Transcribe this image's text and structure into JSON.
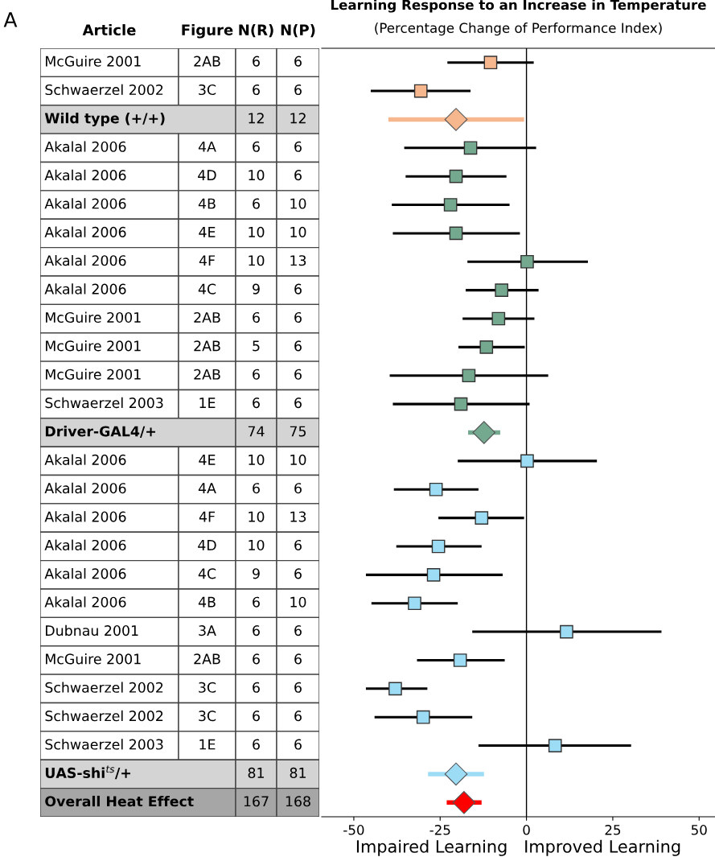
{
  "chart_data": [
    {
      "type": "other",
      "annotations": [
        "A"
      ],
      "categories": [
        "Article",
        "Figure",
        "N(R)",
        "N(P)"
      ],
      "cell_labels": [
        [
          "McGuire 2001",
          "2AB",
          "6",
          "6"
        ],
        [
          "Schwaerzel 2002",
          "3C",
          "6",
          "6"
        ],
        [
          "Wild type (+/+)",
          null,
          "12",
          "12"
        ],
        [
          "Akalal 2006",
          "4A",
          "6",
          "6"
        ],
        [
          "Akalal 2006",
          "4D",
          "10",
          "6"
        ],
        [
          "Akalal 2006",
          "4B",
          "6",
          "10"
        ],
        [
          "Akalal 2006",
          "4E",
          "10",
          "10"
        ],
        [
          "Akalal 2006",
          "4F",
          "10",
          "13"
        ],
        [
          "Akalal 2006",
          "4C",
          "9",
          "6"
        ],
        [
          "McGuire 2001",
          "2AB",
          "6",
          "6"
        ],
        [
          "McGuire 2001",
          "2AB",
          "5",
          "6"
        ],
        [
          "McGuire 2001",
          "2AB",
          "6",
          "6"
        ],
        [
          "Schwaerzel 2003",
          "1E",
          "6",
          "6"
        ],
        [
          "Driver-GAL4/+",
          null,
          "74",
          "75"
        ],
        [
          "Akalal 2006",
          "4E",
          "10",
          "10"
        ],
        [
          "Akalal 2006",
          "4A",
          "6",
          "6"
        ],
        [
          "Akalal 2006",
          "4F",
          "10",
          "13"
        ],
        [
          "Akalal 2006",
          "4D",
          "10",
          "6"
        ],
        [
          "Akalal 2006",
          "4C",
          "9",
          "6"
        ],
        [
          "Akalal 2006",
          "4B",
          "6",
          "10"
        ],
        [
          "Dubnau 2001",
          "3A",
          "6",
          "6"
        ],
        [
          "McGuire 2001",
          "2AB",
          "6",
          "6"
        ],
        [
          "Schwaerzel 2002",
          "3C",
          "6",
          "6"
        ],
        [
          "Schwaerzel 2002",
          "3C",
          "6",
          "6"
        ],
        [
          "Schwaerzel 2003",
          "1E",
          "6",
          "6"
        ],
        [
          "UAS-shi$^{ts}$/+",
          null,
          "81",
          "81"
        ],
        [
          "Overall Heat Effect",
          null,
          "167",
          "168"
        ]
      ],
      "colors": [
        "#ffffff",
        "#ffffff",
        "#d4d4d4",
        "#ffffff",
        "#ffffff",
        "#ffffff",
        "#ffffff",
        "#ffffff",
        "#ffffff",
        "#ffffff",
        "#ffffff",
        "#ffffff",
        "#ffffff",
        "#d4d4d4",
        "#ffffff",
        "#ffffff",
        "#ffffff",
        "#ffffff",
        "#ffffff",
        "#ffffff",
        "#ffffff",
        "#ffffff",
        "#ffffff",
        "#ffffff",
        "#ffffff",
        "#d4d4d4",
        "#a6a6a6"
      ]
    },
    {
      "type": "scatter",
      "orientation": "horizontal",
      "title": "Learning Response to an Increase in Temperature",
      "subtitle": "(Percentage Change of Performance Index)",
      "xlabel": "Impaired Learning   Improved Learning",
      "categories": [
        null,
        null,
        null,
        null,
        null,
        null,
        null,
        null,
        null,
        null,
        null,
        null,
        null,
        null,
        null,
        null,
        null,
        null,
        null,
        null,
        null,
        null,
        null,
        null,
        null,
        null,
        null
      ],
      "xlim": [
        -59.3,
        54.6
      ],
      "xticks": [
        -50,
        -25,
        0,
        25,
        50
      ],
      "grid": false,
      "ref_lines": [
        {
          "axis": "x",
          "value": 0,
          "color": "#000000"
        }
      ],
      "series": [
        {
          "color": "#f6b68e",
          "marker": "square",
          "values": [
            -10.4,
            -30.6,
            null,
            null,
            null,
            null,
            null,
            null,
            null,
            null,
            null,
            null,
            null,
            null,
            null,
            null,
            null,
            null,
            null,
            null,
            null,
            null,
            null,
            null,
            null,
            null,
            null
          ],
          "errors": [
            [
              -22.9,
              2.1
            ],
            [
              -45.1,
              -16.2
            ],
            null,
            null,
            null,
            null,
            null,
            null,
            null,
            null,
            null,
            null,
            null,
            null,
            null,
            null,
            null,
            null,
            null,
            null,
            null,
            null,
            null,
            null,
            null,
            null,
            null
          ]
        },
        {
          "color": "#f6b68e",
          "marker": "diamond",
          "values": [
            null,
            null,
            -20.4,
            null,
            null,
            null,
            null,
            null,
            null,
            null,
            null,
            null,
            null,
            null,
            null,
            null,
            null,
            null,
            null,
            null,
            null,
            null,
            null,
            null,
            null,
            null,
            null
          ],
          "errors": [
            null,
            null,
            [
              -40,
              -0.7
            ],
            null,
            null,
            null,
            null,
            null,
            null,
            null,
            null,
            null,
            null,
            null,
            null,
            null,
            null,
            null,
            null,
            null,
            null,
            null,
            null,
            null,
            null,
            null,
            null
          ]
        },
        {
          "color": "#74a98f",
          "marker": "square",
          "values": [
            null,
            null,
            null,
            -16.2,
            -20.4,
            -22,
            -20.4,
            0.2,
            -7.2,
            -8.1,
            -11.6,
            -16.7,
            -19,
            null,
            null,
            null,
            null,
            null,
            null,
            null,
            null,
            null,
            null,
            null,
            null,
            null,
            null
          ],
          "errors": [
            null,
            null,
            null,
            [
              -35.4,
              2.8
            ],
            [
              -35,
              -5.8
            ],
            [
              -39,
              -4.9
            ],
            [
              -38.7,
              -1.9
            ],
            [
              -17.1,
              17.8
            ],
            [
              -17.6,
              3.5
            ],
            [
              -18.5,
              2.3
            ],
            [
              -19.7,
              -0.5
            ],
            [
              -39.6,
              6.3
            ],
            [
              -38.7,
              0.9
            ],
            null,
            null,
            null,
            null,
            null,
            null,
            null,
            null,
            null,
            null,
            null,
            null,
            null,
            null
          ]
        },
        {
          "color": "#74a98f",
          "marker": "diamond",
          "values": [
            null,
            null,
            null,
            null,
            null,
            null,
            null,
            null,
            null,
            null,
            null,
            null,
            null,
            -12.3,
            null,
            null,
            null,
            null,
            null,
            null,
            null,
            null,
            null,
            null,
            null,
            null,
            null
          ],
          "errors": [
            null,
            null,
            null,
            null,
            null,
            null,
            null,
            null,
            null,
            null,
            null,
            null,
            null,
            [
              -16.9,
              -7.6
            ],
            null,
            null,
            null,
            null,
            null,
            null,
            null,
            null,
            null,
            null,
            null,
            null,
            null
          ]
        },
        {
          "color": "#9ddcf5",
          "marker": "square",
          "values": [
            null,
            null,
            null,
            null,
            null,
            null,
            null,
            null,
            null,
            null,
            null,
            null,
            null,
            null,
            0.2,
            -26.2,
            -13,
            -25.5,
            -26.9,
            -32.4,
            11.6,
            -19.2,
            -38,
            -29.9,
            8.3,
            null,
            null
          ],
          "errors": [
            null,
            null,
            null,
            null,
            null,
            null,
            null,
            null,
            null,
            null,
            null,
            null,
            null,
            null,
            [
              -19.9,
              20.4
            ],
            [
              -38.4,
              -13.9
            ],
            [
              -25.5,
              -0.7
            ],
            [
              -37.7,
              -13
            ],
            [
              -46.5,
              -6.9
            ],
            [
              -44.9,
              -19.9
            ],
            [
              -15.7,
              39.1
            ],
            [
              -31.7,
              -6.3
            ],
            [
              -46.5,
              -28.7
            ],
            [
              -44,
              -15.7
            ],
            [
              -13.9,
              30.3
            ],
            null,
            null
          ]
        },
        {
          "color": "#9ddcf5",
          "marker": "diamond",
          "values": [
            null,
            null,
            null,
            null,
            null,
            null,
            null,
            null,
            null,
            null,
            null,
            null,
            null,
            null,
            null,
            null,
            null,
            null,
            null,
            null,
            null,
            null,
            null,
            null,
            null,
            -20.4,
            null
          ],
          "errors": [
            null,
            null,
            null,
            null,
            null,
            null,
            null,
            null,
            null,
            null,
            null,
            null,
            null,
            null,
            null,
            null,
            null,
            null,
            null,
            null,
            null,
            null,
            null,
            null,
            null,
            [
              -28.5,
              -12.3
            ],
            null
          ]
        },
        {
          "color": "#ff0000",
          "marker": "diamond",
          "values": [
            null,
            null,
            null,
            null,
            null,
            null,
            null,
            null,
            null,
            null,
            null,
            null,
            null,
            null,
            null,
            null,
            null,
            null,
            null,
            null,
            null,
            null,
            null,
            null,
            null,
            null,
            -18.1
          ],
          "errors": [
            null,
            null,
            null,
            null,
            null,
            null,
            null,
            null,
            null,
            null,
            null,
            null,
            null,
            null,
            null,
            null,
            null,
            null,
            null,
            null,
            null,
            null,
            null,
            null,
            null,
            null,
            [
              -23.1,
              -13
            ]
          ]
        }
      ]
    }
  ]
}
